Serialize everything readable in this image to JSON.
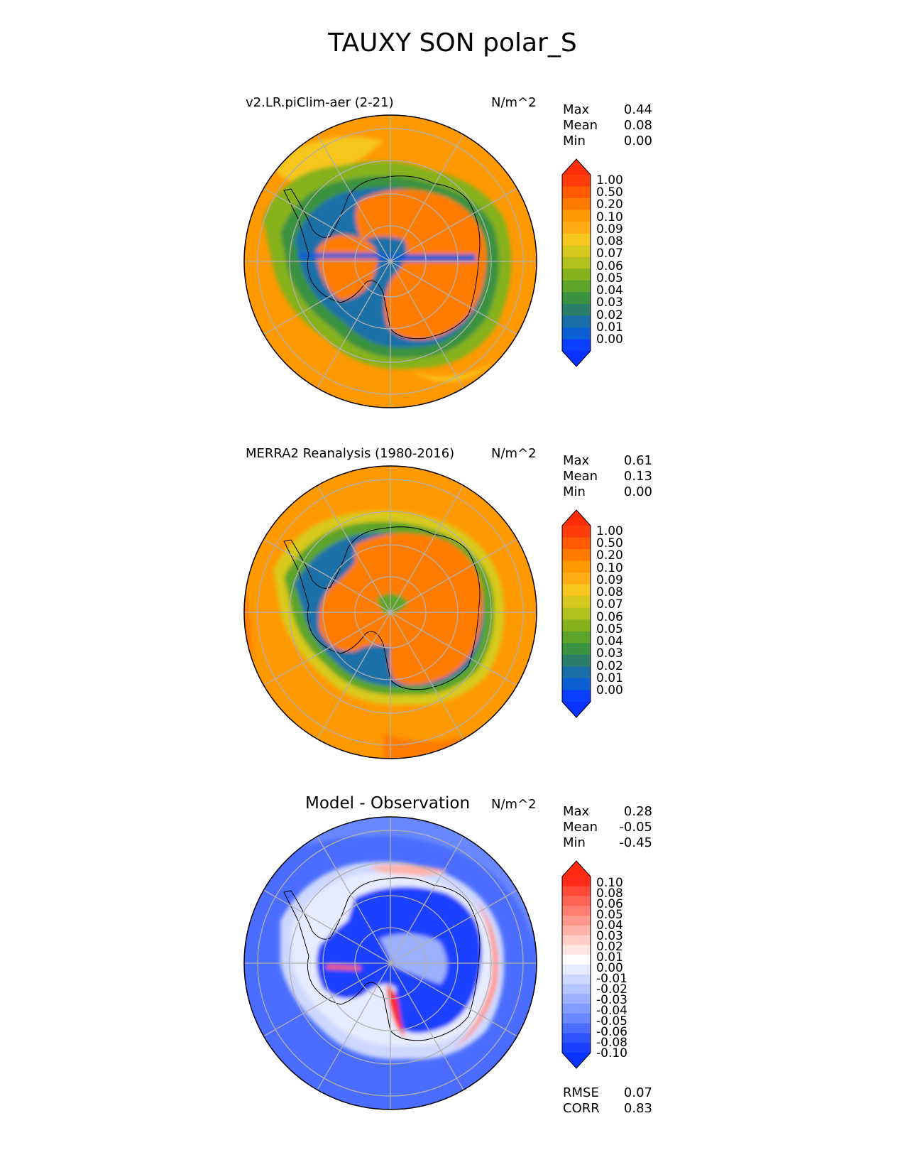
{
  "title": "TAUXY SON polar_S",
  "panels": [
    {
      "id": "test",
      "title": "v2.LR.piClim-aer (2-21)",
      "units": "N/m^2",
      "stats": [
        {
          "label": "Max",
          "value": "0.44"
        },
        {
          "label": "Mean",
          "value": "0.08"
        },
        {
          "label": "Min",
          "value": "0.00"
        }
      ],
      "colorbar": {
        "labels": [
          "1.00",
          "0.50",
          "0.20",
          "0.10",
          "0.09",
          "0.08",
          "0.07",
          "0.06",
          "0.05",
          "0.04",
          "0.03",
          "0.02",
          "0.01",
          "0.00"
        ],
        "colors": [
          "#ff3d0a",
          "#ff5a00",
          "#ff7b00",
          "#ff9900",
          "#ffab14",
          "#f7c61c",
          "#d8c91f",
          "#b2bf1f",
          "#86b21d",
          "#5ca52a",
          "#3b9240",
          "#2b7f6a",
          "#1b6fa8",
          "#0d5fd4",
          "#0a3fff"
        ],
        "upper_extend": "#ff2e0a",
        "lower_extend": "#0a33ff"
      }
    },
    {
      "id": "reference",
      "title": "MERRA2 Reanalysis (1980-2016)",
      "units": "N/m^2",
      "stats": [
        {
          "label": "Max",
          "value": "0.61"
        },
        {
          "label": "Mean",
          "value": "0.13"
        },
        {
          "label": "Min",
          "value": "0.00"
        }
      ],
      "colorbar": {
        "labels": [
          "1.00",
          "0.50",
          "0.20",
          "0.10",
          "0.09",
          "0.08",
          "0.07",
          "0.06",
          "0.05",
          "0.04",
          "0.03",
          "0.02",
          "0.01",
          "0.00"
        ],
        "colors": [
          "#ff3d0a",
          "#ff5a00",
          "#ff7b00",
          "#ff9900",
          "#ffab14",
          "#f7c61c",
          "#d8c91f",
          "#b2bf1f",
          "#86b21d",
          "#5ca52a",
          "#3b9240",
          "#2b7f6a",
          "#1b6fa8",
          "#0d5fd4",
          "#0a3fff"
        ],
        "upper_extend": "#ff2e0a",
        "lower_extend": "#0a33ff"
      }
    },
    {
      "id": "diff",
      "title": "Model - Observation",
      "units": "N/m^2",
      "stats": [
        {
          "label": "Max",
          "value": "0.28"
        },
        {
          "label": "Mean",
          "value": "-0.05"
        },
        {
          "label": "Min",
          "value": "-0.45"
        }
      ],
      "colorbar": {
        "labels": [
          "0.10",
          "0.08",
          "0.06",
          "0.05",
          "0.04",
          "0.03",
          "0.02",
          "0.01",
          "0.00",
          "-0.01",
          "-0.02",
          "-0.03",
          "-0.04",
          "-0.05",
          "-0.06",
          "-0.08",
          "-0.10"
        ],
        "colors": [
          "#ff2a1a",
          "#ff4a3a",
          "#ff6456",
          "#ff7e70",
          "#ff988c",
          "#ffb3a8",
          "#ffcdc6",
          "#ffe6e2",
          "#ffffff",
          "#e6ebff",
          "#cdd8ff",
          "#b4c4ff",
          "#9bb0ff",
          "#829cff",
          "#6988ff",
          "#4b6dff",
          "#2f54ff",
          "#1a3fff"
        ],
        "upper_extend": "#ff2a10",
        "lower_extend": "#0a33ff"
      },
      "metrics": [
        {
          "label": "RMSE",
          "value": "0.07"
        },
        {
          "label": "CORR",
          "value": "0.83"
        }
      ]
    }
  ],
  "chart_data": {
    "type": "heatmap",
    "projection": "south polar stereographic",
    "title": "TAUXY SON polar_S",
    "panels": [
      {
        "name": "v2.LR.piClim-aer (2-21)",
        "units": "N/m^2",
        "max": 0.44,
        "mean": 0.08,
        "min": 0.0,
        "levels": [
          0.0,
          0.01,
          0.02,
          0.03,
          0.04,
          0.05,
          0.06,
          0.07,
          0.08,
          0.09,
          0.1,
          0.2,
          0.5,
          1.0
        ]
      },
      {
        "name": "MERRA2 Reanalysis (1980-2016)",
        "units": "N/m^2",
        "max": 0.61,
        "mean": 0.13,
        "min": 0.0,
        "levels": [
          0.0,
          0.01,
          0.02,
          0.03,
          0.04,
          0.05,
          0.06,
          0.07,
          0.08,
          0.09,
          0.1,
          0.2,
          0.5,
          1.0
        ]
      },
      {
        "name": "Model - Observation",
        "units": "N/m^2",
        "max": 0.28,
        "mean": -0.05,
        "min": -0.45,
        "rmse": 0.07,
        "corr": 0.83,
        "levels": [
          -0.1,
          -0.08,
          -0.06,
          -0.05,
          -0.04,
          -0.03,
          -0.02,
          -0.01,
          0.0,
          0.01,
          0.02,
          0.03,
          0.04,
          0.05,
          0.06,
          0.08,
          0.1
        ]
      }
    ],
    "grid": true
  }
}
